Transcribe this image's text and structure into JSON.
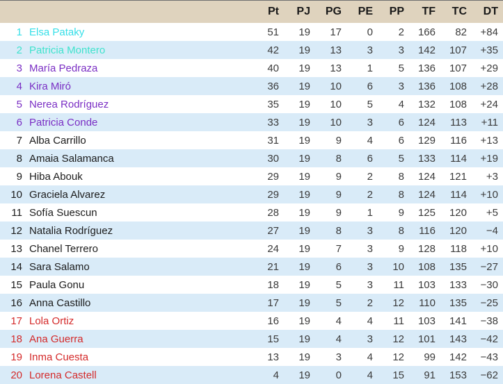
{
  "colors": {
    "header_bg": "#dfd3be",
    "header_text": "#181818",
    "row_alt_bg": "#d9ebf8",
    "number_text": "#3a3a3a",
    "zone_top": "#35dfe8",
    "zone_second": "#3fe3cd",
    "zone_playoff": "#7a2ec4",
    "zone_mid": "#1b1b1b",
    "zone_relegation": "#d42a2a"
  },
  "chart_data": {
    "type": "table",
    "title": "",
    "columns": [
      "Pt",
      "PJ",
      "PG",
      "PE",
      "PP",
      "TF",
      "TC",
      "DT"
    ],
    "rows": [
      {
        "rank": "1",
        "name": "Elsa Pataky",
        "name_color": "#35dfe8",
        "values": [
          "51",
          "19",
          "17",
          "0",
          "2",
          "166",
          "82",
          "+84"
        ]
      },
      {
        "rank": "2",
        "name": "Patricia Montero",
        "name_color": "#3fe3cd",
        "values": [
          "42",
          "19",
          "13",
          "3",
          "3",
          "142",
          "107",
          "+35"
        ]
      },
      {
        "rank": "3",
        "name": "María Pedraza",
        "name_color": "#7a2ec4",
        "values": [
          "40",
          "19",
          "13",
          "1",
          "5",
          "136",
          "107",
          "+29"
        ]
      },
      {
        "rank": "4",
        "name": "Kira Miró",
        "name_color": "#7a2ec4",
        "values": [
          "36",
          "19",
          "10",
          "6",
          "3",
          "136",
          "108",
          "+28"
        ]
      },
      {
        "rank": "5",
        "name": "Nerea Rodríguez",
        "name_color": "#7a2ec4",
        "values": [
          "35",
          "19",
          "10",
          "5",
          "4",
          "132",
          "108",
          "+24"
        ]
      },
      {
        "rank": "6",
        "name": "Patricia Conde",
        "name_color": "#7a2ec4",
        "values": [
          "33",
          "19",
          "10",
          "3",
          "6",
          "124",
          "113",
          "+11"
        ]
      },
      {
        "rank": "7",
        "name": "Alba Carrillo",
        "name_color": "#1b1b1b",
        "values": [
          "31",
          "19",
          "9",
          "4",
          "6",
          "129",
          "116",
          "+13"
        ]
      },
      {
        "rank": "8",
        "name": "Amaia Salamanca",
        "name_color": "#1b1b1b",
        "values": [
          "30",
          "19",
          "8",
          "6",
          "5",
          "133",
          "114",
          "+19"
        ]
      },
      {
        "rank": "9",
        "name": "Hiba Abouk",
        "name_color": "#1b1b1b",
        "values": [
          "29",
          "19",
          "9",
          "2",
          "8",
          "124",
          "121",
          "+3"
        ]
      },
      {
        "rank": "10",
        "name": "Graciela Alvarez",
        "name_color": "#1b1b1b",
        "values": [
          "29",
          "19",
          "9",
          "2",
          "8",
          "124",
          "114",
          "+10"
        ]
      },
      {
        "rank": "11",
        "name": "Sofía Suescun",
        "name_color": "#1b1b1b",
        "values": [
          "28",
          "19",
          "9",
          "1",
          "9",
          "125",
          "120",
          "+5"
        ]
      },
      {
        "rank": "12",
        "name": "Natalia Rodríguez",
        "name_color": "#1b1b1b",
        "values": [
          "27",
          "19",
          "8",
          "3",
          "8",
          "116",
          "120",
          "−4"
        ]
      },
      {
        "rank": "13",
        "name": "Chanel Terrero",
        "name_color": "#1b1b1b",
        "values": [
          "24",
          "19",
          "7",
          "3",
          "9",
          "128",
          "118",
          "+10"
        ]
      },
      {
        "rank": "14",
        "name": "Sara Salamo",
        "name_color": "#1b1b1b",
        "values": [
          "21",
          "19",
          "6",
          "3",
          "10",
          "108",
          "135",
          "−27"
        ]
      },
      {
        "rank": "15",
        "name": "Paula Gonu",
        "name_color": "#1b1b1b",
        "values": [
          "18",
          "19",
          "5",
          "3",
          "11",
          "103",
          "133",
          "−30"
        ]
      },
      {
        "rank": "16",
        "name": "Anna Castillo",
        "name_color": "#1b1b1b",
        "values": [
          "17",
          "19",
          "5",
          "2",
          "12",
          "110",
          "135",
          "−25"
        ]
      },
      {
        "rank": "17",
        "name": "Lola Ortiz",
        "name_color": "#d42a2a",
        "values": [
          "16",
          "19",
          "4",
          "4",
          "11",
          "103",
          "141",
          "−38"
        ]
      },
      {
        "rank": "18",
        "name": "Ana Guerra",
        "name_color": "#d42a2a",
        "values": [
          "15",
          "19",
          "4",
          "3",
          "12",
          "101",
          "143",
          "−42"
        ]
      },
      {
        "rank": "19",
        "name": "Inma Cuesta",
        "name_color": "#d42a2a",
        "values": [
          "13",
          "19",
          "3",
          "4",
          "12",
          "99",
          "142",
          "−43"
        ]
      },
      {
        "rank": "20",
        "name": "Lorena Castell",
        "name_color": "#d42a2a",
        "values": [
          "4",
          "19",
          "0",
          "4",
          "15",
          "91",
          "153",
          "−62"
        ]
      }
    ]
  }
}
